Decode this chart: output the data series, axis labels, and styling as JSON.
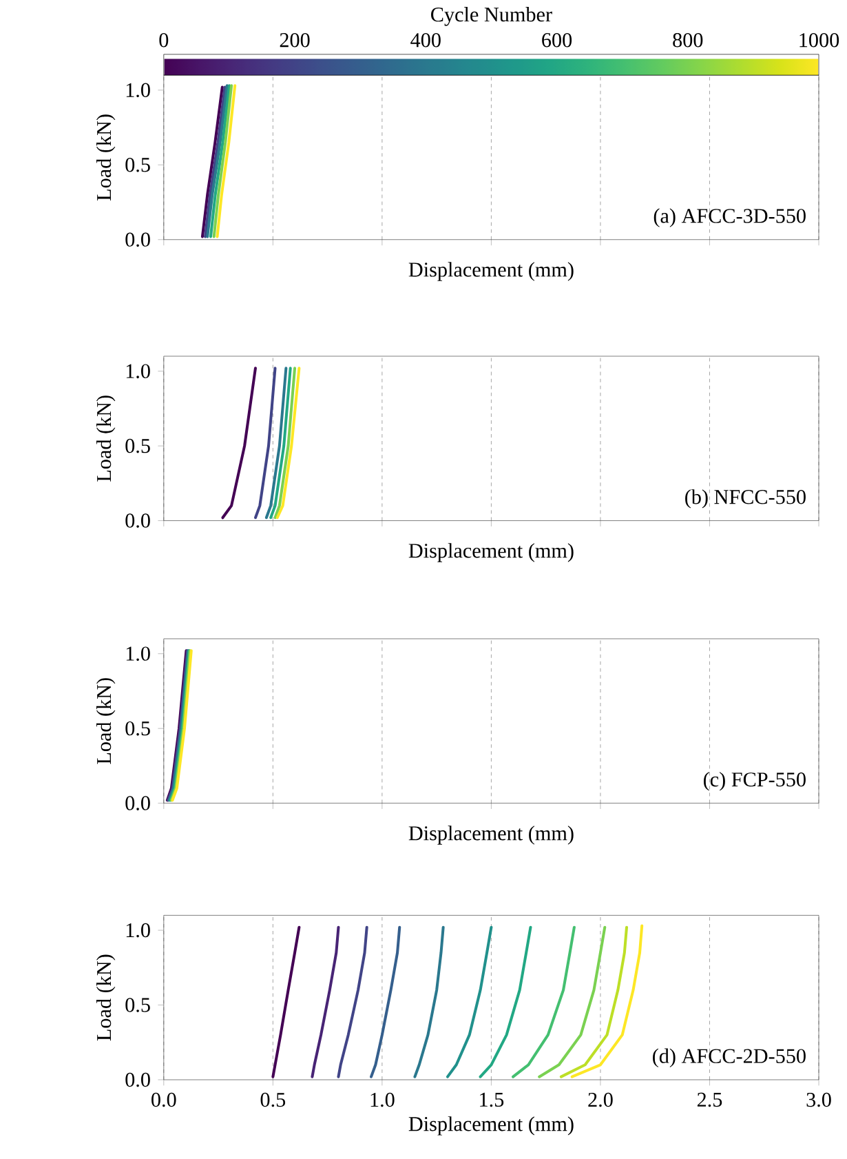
{
  "chart_data": [
    {
      "type": "line",
      "clabel": "Cycle Number",
      "clim": [
        0,
        1000
      ],
      "cticks": [
        0,
        200,
        400,
        600,
        800,
        1000
      ],
      "xlabel": "Displacement (mm)",
      "ylabel": "Load (kN)",
      "xlim": [
        0,
        3
      ],
      "xticks": [
        0,
        0.5,
        1,
        1.5,
        2,
        2.5,
        3
      ],
      "ylim": [
        0,
        1.1
      ],
      "yticks": [
        {
          "value": 0,
          "label": "0.0"
        },
        {
          "value": 0.5,
          "label": "0.5"
        },
        {
          "value": 1,
          "label": "1.0"
        }
      ],
      "grid": "x",
      "tick_labels": "y",
      "annotations": [
        "(a) AFCC-3D-550"
      ],
      "series": [
        {
          "color": "#440154",
          "x": [
            0.177,
            0.2,
            0.235,
            0.268
          ],
          "values": [
            0.02,
            0.3,
            0.65,
            1.02
          ]
        },
        {
          "color": "#414487",
          "x": [
            0.19,
            0.212,
            0.248,
            0.28
          ],
          "values": [
            0.02,
            0.3,
            0.65,
            1.02
          ]
        },
        {
          "color": "#2a788e",
          "x": [
            0.2,
            0.222,
            0.258,
            0.29
          ],
          "values": [
            0.02,
            0.3,
            0.65,
            1.03
          ]
        },
        {
          "color": "#22a884",
          "x": [
            0.215,
            0.236,
            0.27,
            0.3
          ],
          "values": [
            0.02,
            0.3,
            0.65,
            1.03
          ]
        },
        {
          "color": "#7ad151",
          "x": [
            0.23,
            0.25,
            0.282,
            0.31
          ],
          "values": [
            0.02,
            0.3,
            0.65,
            1.03
          ]
        },
        {
          "color": "#fde725",
          "x": [
            0.245,
            0.265,
            0.298,
            0.326
          ],
          "values": [
            0.02,
            0.3,
            0.65,
            1.03
          ]
        }
      ]
    },
    {
      "type": "line",
      "xlabel": "Displacement (mm)",
      "ylabel": "Load (kN)",
      "xlim": [
        0,
        3
      ],
      "xticks": [
        0,
        0.5,
        1,
        1.5,
        2,
        2.5,
        3
      ],
      "ylim": [
        0,
        1.1
      ],
      "yticks": [
        {
          "value": 0,
          "label": "0.0"
        },
        {
          "value": 0.5,
          "label": "0.5"
        },
        {
          "value": 1,
          "label": "1.0"
        }
      ],
      "grid": "x",
      "tick_labels": "y",
      "annotations": [
        "(b) NFCC-550"
      ],
      "series": [
        {
          "color": "#440154",
          "x": [
            0.27,
            0.31,
            0.37,
            0.42
          ],
          "values": [
            0.02,
            0.1,
            0.5,
            1.02
          ]
        },
        {
          "color": "#414487",
          "x": [
            0.42,
            0.44,
            0.48,
            0.51
          ],
          "values": [
            0.02,
            0.1,
            0.5,
            1.02
          ]
        },
        {
          "color": "#2a788e",
          "x": [
            0.47,
            0.49,
            0.53,
            0.56
          ],
          "values": [
            0.02,
            0.1,
            0.5,
            1.02
          ]
        },
        {
          "color": "#22a884",
          "x": [
            0.49,
            0.51,
            0.55,
            0.58
          ],
          "values": [
            0.02,
            0.1,
            0.5,
            1.02
          ]
        },
        {
          "color": "#7ad151",
          "x": [
            0.51,
            0.53,
            0.57,
            0.6
          ],
          "values": [
            0.02,
            0.1,
            0.5,
            1.02
          ]
        },
        {
          "color": "#fde725",
          "x": [
            0.52,
            0.545,
            0.585,
            0.62
          ],
          "values": [
            0.02,
            0.1,
            0.5,
            1.02
          ]
        }
      ]
    },
    {
      "type": "line",
      "xlabel": "Displacement (mm)",
      "ylabel": "Load (kN)",
      "xlim": [
        0,
        3
      ],
      "xticks": [
        0,
        0.5,
        1,
        1.5,
        2,
        2.5,
        3
      ],
      "ylim": [
        0,
        1.1
      ],
      "yticks": [
        {
          "value": 0,
          "label": "0.0"
        },
        {
          "value": 0.5,
          "label": "0.5"
        },
        {
          "value": 1,
          "label": "1.0"
        }
      ],
      "grid": "x",
      "tick_labels": "y",
      "annotations": [
        "(c) FCP-550"
      ],
      "series": [
        {
          "color": "#440154",
          "x": [
            0.016,
            0.035,
            0.07,
            0.103
          ],
          "values": [
            0.02,
            0.1,
            0.5,
            1.02
          ]
        },
        {
          "color": "#414487",
          "x": [
            0.02,
            0.04,
            0.075,
            0.108
          ],
          "values": [
            0.02,
            0.1,
            0.5,
            1.02
          ]
        },
        {
          "color": "#2a788e",
          "x": [
            0.025,
            0.045,
            0.08,
            0.112
          ],
          "values": [
            0.02,
            0.1,
            0.5,
            1.02
          ]
        },
        {
          "color": "#22a884",
          "x": [
            0.03,
            0.05,
            0.085,
            0.116
          ],
          "values": [
            0.02,
            0.1,
            0.5,
            1.02
          ]
        },
        {
          "color": "#7ad151",
          "x": [
            0.035,
            0.055,
            0.09,
            0.12
          ],
          "values": [
            0.02,
            0.1,
            0.5,
            1.02
          ]
        },
        {
          "color": "#fde725",
          "x": [
            0.04,
            0.06,
            0.095,
            0.126
          ],
          "values": [
            0.02,
            0.1,
            0.5,
            1.02
          ]
        }
      ]
    },
    {
      "type": "line",
      "xlabel": "Displacement (mm)",
      "ylabel": "Load (kN)",
      "xlim": [
        0,
        3
      ],
      "xticks": [
        {
          "value": 0,
          "label": "0.0"
        },
        0.5,
        {
          "value": 1,
          "label": "1.0"
        },
        1.5,
        {
          "value": 2,
          "label": "2.0"
        },
        2.5,
        {
          "value": 3,
          "label": "3.0"
        }
      ],
      "ylim": [
        0,
        1.1
      ],
      "yticks": [
        {
          "value": 0,
          "label": "0.0"
        },
        {
          "value": 0.5,
          "label": "0.5"
        },
        {
          "value": 1,
          "label": "1.0"
        }
      ],
      "grid": "x",
      "annotations": [
        "(d) AFCC-2D-550"
      ],
      "series": [
        {
          "color": "#440154",
          "x": [
            0.5,
            0.51,
            0.535,
            0.57,
            0.6,
            0.62
          ],
          "values": [
            0.02,
            0.1,
            0.3,
            0.6,
            0.85,
            1.02
          ]
        },
        {
          "color": "#482475",
          "x": [
            0.68,
            0.69,
            0.72,
            0.76,
            0.79,
            0.8
          ],
          "values": [
            0.02,
            0.1,
            0.3,
            0.6,
            0.85,
            1.02
          ]
        },
        {
          "color": "#414487",
          "x": [
            0.8,
            0.81,
            0.845,
            0.89,
            0.92,
            0.93
          ],
          "values": [
            0.02,
            0.1,
            0.3,
            0.6,
            0.85,
            1.02
          ]
        },
        {
          "color": "#355f8d",
          "x": [
            0.95,
            0.97,
            1.0,
            1.04,
            1.07,
            1.08
          ],
          "values": [
            0.02,
            0.1,
            0.3,
            0.6,
            0.85,
            1.02
          ]
        },
        {
          "color": "#2a788e",
          "x": [
            1.15,
            1.17,
            1.21,
            1.25,
            1.27,
            1.28
          ],
          "values": [
            0.02,
            0.1,
            0.3,
            0.6,
            0.85,
            1.02
          ]
        },
        {
          "color": "#21918c",
          "x": [
            1.3,
            1.34,
            1.4,
            1.45,
            1.48,
            1.5
          ],
          "values": [
            0.02,
            0.1,
            0.3,
            0.6,
            0.85,
            1.02
          ]
        },
        {
          "color": "#22a884",
          "x": [
            1.45,
            1.5,
            1.57,
            1.63,
            1.66,
            1.68
          ],
          "values": [
            0.02,
            0.1,
            0.3,
            0.6,
            0.85,
            1.02
          ]
        },
        {
          "color": "#44bf70",
          "x": [
            1.6,
            1.67,
            1.76,
            1.83,
            1.86,
            1.88
          ],
          "values": [
            0.02,
            0.1,
            0.3,
            0.6,
            0.85,
            1.02
          ]
        },
        {
          "color": "#7ad151",
          "x": [
            1.72,
            1.81,
            1.91,
            1.97,
            2.0,
            2.02
          ],
          "values": [
            0.02,
            0.1,
            0.3,
            0.6,
            0.85,
            1.02
          ]
        },
        {
          "color": "#bddf26",
          "x": [
            1.82,
            1.93,
            2.03,
            2.08,
            2.11,
            2.12
          ],
          "values": [
            0.02,
            0.1,
            0.3,
            0.6,
            0.85,
            1.02
          ]
        },
        {
          "color": "#fde725",
          "x": [
            1.87,
            2.0,
            2.1,
            2.15,
            2.18,
            2.19
          ],
          "values": [
            0.02,
            0.1,
            0.3,
            0.6,
            0.85,
            1.03
          ]
        }
      ]
    }
  ]
}
